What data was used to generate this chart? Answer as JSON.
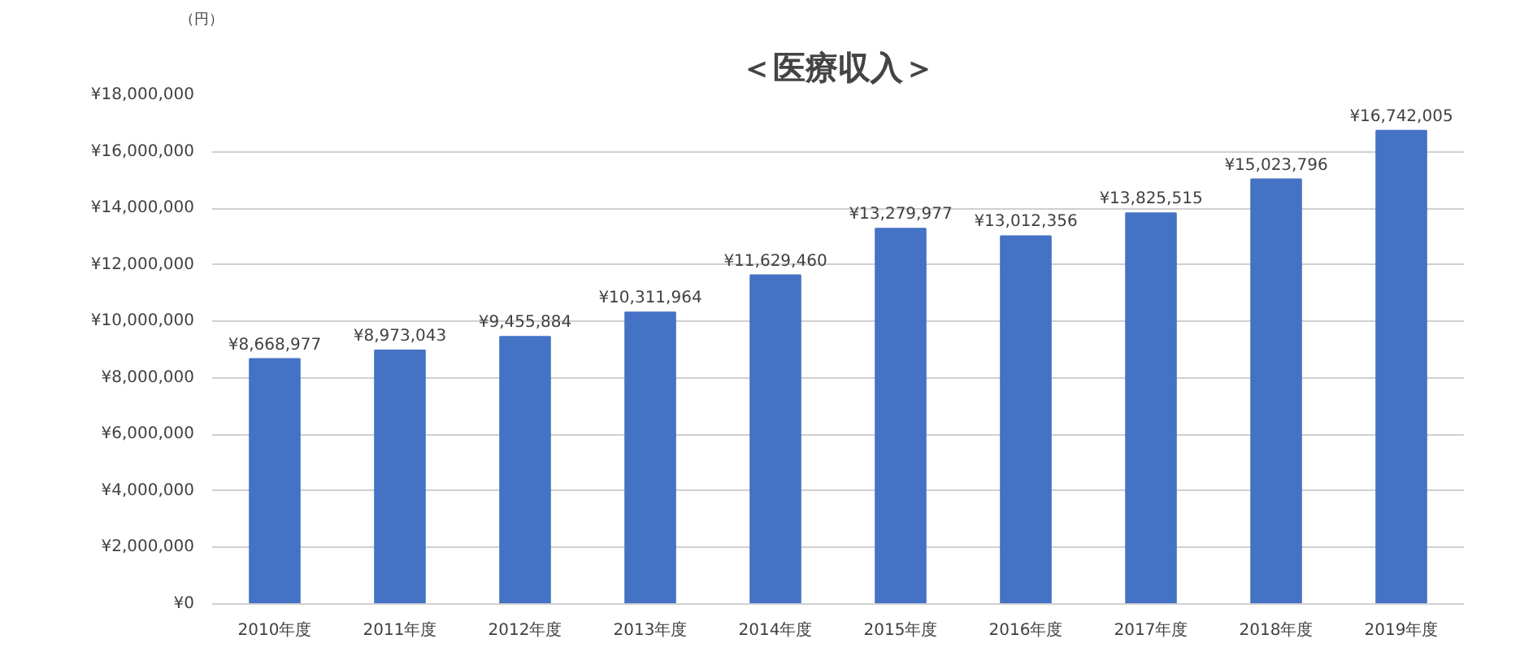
{
  "chart_data": {
    "type": "bar",
    "title": "＜医療収入＞",
    "ylabel": "（円）",
    "categories": [
      "2010年度",
      "2011年度",
      "2012年度",
      "2013年度",
      "2014年度",
      "2015年度",
      "2016年度",
      "2017年度",
      "2018年度",
      "2019年度"
    ],
    "values": [
      8668977,
      8973043,
      9455884,
      10311964,
      11629460,
      13279977,
      13012356,
      13825515,
      15023796,
      16742005
    ],
    "value_labels": [
      "¥8,668,977",
      "¥8,973,043",
      "¥9,455,884",
      "¥10,311,964",
      "¥11,629,460",
      "¥13,279,977",
      "¥13,012,356",
      "¥13,825,515",
      "¥15,023,796",
      "¥16,742,005"
    ],
    "color": "#4472c4",
    "ylim": [
      0,
      18000000
    ],
    "yticks": [
      {
        "value": 0,
        "label": "¥0"
      },
      {
        "value": 2000000,
        "label": "¥2,000,000"
      },
      {
        "value": 4000000,
        "label": "¥4,000,000"
      },
      {
        "value": 6000000,
        "label": "¥6,000,000"
      },
      {
        "value": 8000000,
        "label": "¥8,000,000"
      },
      {
        "value": 10000000,
        "label": "¥10,000,000"
      },
      {
        "value": 12000000,
        "label": "¥12,000,000"
      },
      {
        "value": 14000000,
        "label": "¥14,000,000"
      },
      {
        "value": 16000000,
        "label": "¥16,000,000"
      },
      {
        "value": 18000000,
        "label": "¥18,000,000"
      }
    ],
    "grid": "y"
  }
}
